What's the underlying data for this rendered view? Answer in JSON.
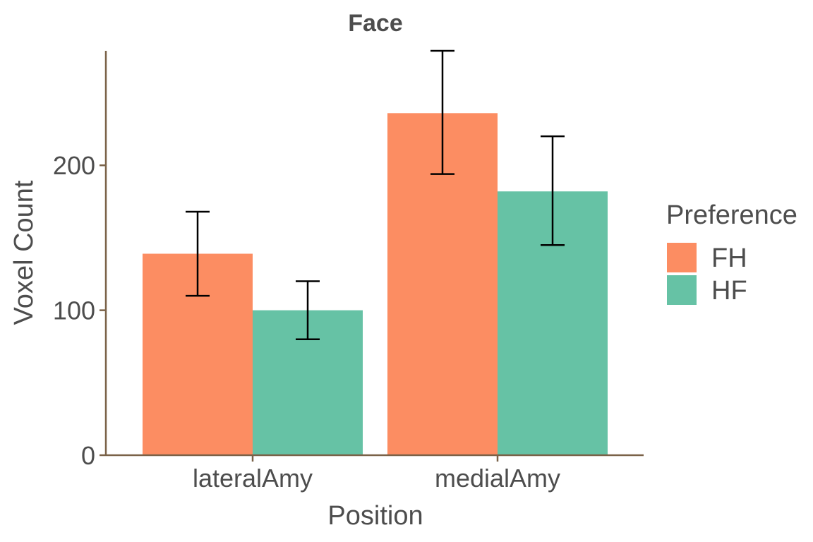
{
  "chart_data": {
    "type": "bar",
    "title": "Face",
    "xlabel": "Position",
    "ylabel": "Voxel Count",
    "categories": [
      "lateralAmy",
      "medialAmy"
    ],
    "series": [
      {
        "name": "FH",
        "color": "#FC8D62",
        "values": [
          139,
          236
        ],
        "error_low": [
          110,
          194
        ],
        "error_high": [
          168,
          279
        ]
      },
      {
        "name": "HF",
        "color": "#66C2A5",
        "values": [
          100,
          182
        ],
        "error_low": [
          80,
          145
        ],
        "error_high": [
          120,
          220
        ]
      }
    ],
    "yticks": [
      0,
      100,
      200
    ],
    "ylim": [
      0,
      279
    ],
    "legend": {
      "title": "Preference",
      "placement": "right"
    },
    "grid": false,
    "axis_color": "#7a6248"
  }
}
